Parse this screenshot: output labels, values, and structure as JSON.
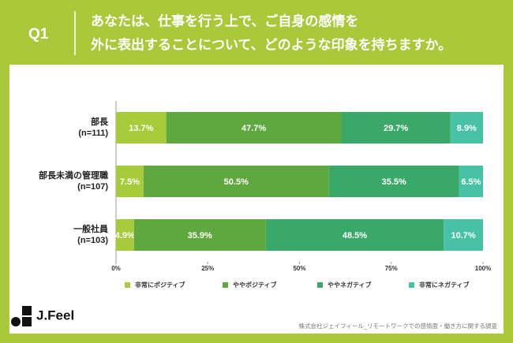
{
  "chart_data": {
    "type": "stacked-barh",
    "question_number": "Q1",
    "title": [
      "あなたは、仕事を行う上で、ご自身の感情を",
      "外に表出することについて、どのような印象を持ちますか。"
    ],
    "categories": [
      [
        "部長",
        "(n=111)"
      ],
      [
        "部長未満の管理職",
        "(n=107)"
      ],
      [
        "一般社員",
        "(n=103)"
      ]
    ],
    "series": [
      {
        "name": "非常にポジティブ",
        "color": "#a6cc3b",
        "values": [
          13.7,
          7.5,
          4.9
        ],
        "value_labels": [
          "13.7%",
          "7.5%",
          "4.9%"
        ]
      },
      {
        "name": "ややポジティブ",
        "color": "#5fa83f",
        "values": [
          47.7,
          50.5,
          35.9
        ],
        "value_labels": [
          "47.7%",
          "50.5%",
          "35.9%"
        ]
      },
      {
        "name": "ややネガティブ",
        "color": "#3aa868",
        "values": [
          29.7,
          35.5,
          48.5
        ],
        "value_labels": [
          "29.7%",
          "35.5%",
          "48.5%"
        ]
      },
      {
        "name": "非常にネガティブ",
        "color": "#47c2a6",
        "values": [
          8.9,
          6.5,
          10.7
        ],
        "value_labels": [
          "8.9%",
          "6.5%",
          "10.7%"
        ]
      }
    ],
    "xlim": [
      0,
      100
    ],
    "xticks": [
      {
        "value": 0,
        "label": "0%"
      },
      {
        "value": 25,
        "label": "25%"
      },
      {
        "value": 50,
        "label": "50%"
      },
      {
        "value": 75,
        "label": "75%"
      },
      {
        "value": 100,
        "label": "100%"
      }
    ],
    "logo": "J.Feel",
    "source": "株式会社ジェイフィール_リモートワークでの感情面・働き方に関する調査"
  }
}
